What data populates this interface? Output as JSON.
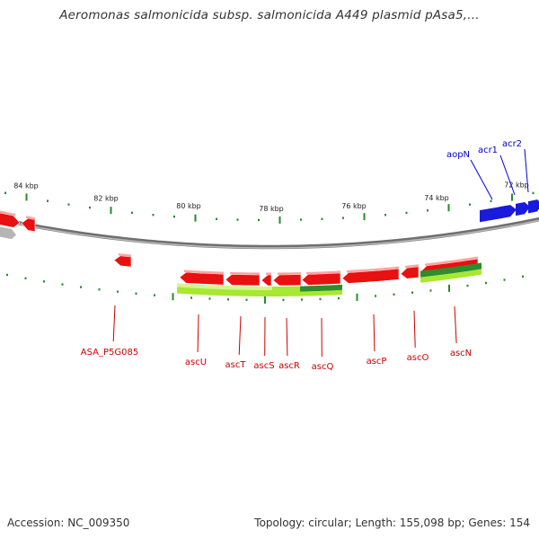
{
  "title": "Aeromonas salmonicida subsp. salmonicida A449 plasmid pAsa5,...",
  "footer": {
    "accession": "Accession: NC_009350",
    "summary": "Topology: circular; Length: 155,098 bp; Genes: 154"
  },
  "colors": {
    "backbone": "#8a8a8a",
    "tick": "#2a8a2a",
    "forward_gene": "#e81010",
    "highlight_gene": "#1a1adc",
    "label_red": "#cc0000",
    "label_blue": "#0000cc",
    "cds_light": "#a6e832",
    "cds_dark": "#2e8b2e"
  },
  "ruler": {
    "labels": [
      "84 kbp",
      "82 kbp",
      "80 kbp",
      "78 kbp",
      "76 kbp",
      "74 kbp",
      "72 kbp"
    ]
  },
  "genes_outer": [
    {
      "name": "aopN",
      "color": "blue"
    },
    {
      "name": "acr1",
      "color": "blue"
    },
    {
      "name": "acr2",
      "color": "blue"
    }
  ],
  "genes_inner": [
    {
      "name": "ASA_P5G085"
    },
    {
      "name": "ascU"
    },
    {
      "name": "ascT"
    },
    {
      "name": "ascS"
    },
    {
      "name": "ascR"
    },
    {
      "name": "ascQ"
    },
    {
      "name": "ascP"
    },
    {
      "name": "ascO"
    },
    {
      "name": "ascN"
    }
  ]
}
